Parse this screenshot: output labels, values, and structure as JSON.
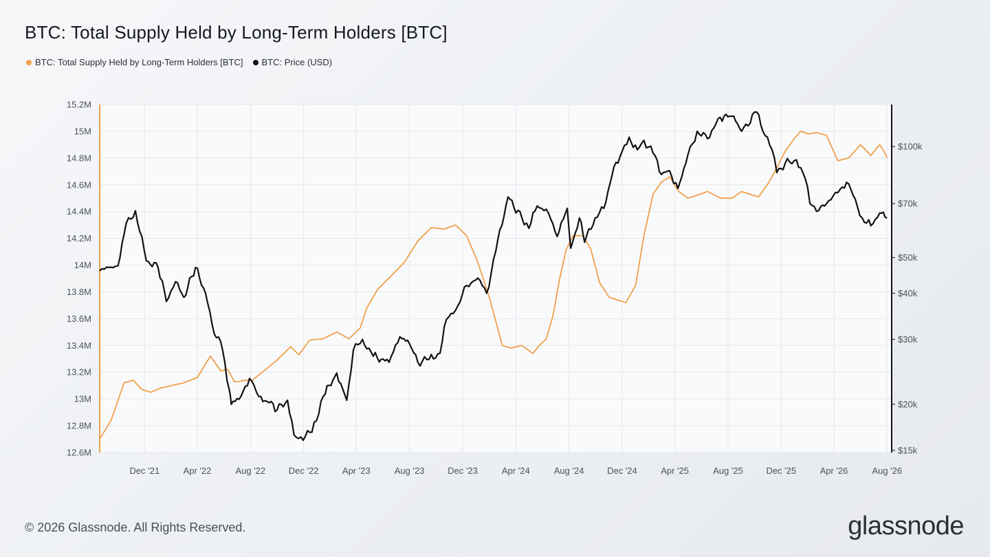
{
  "title": "BTC: Total Supply Held by Long-Term Holders [BTC]",
  "legend": [
    {
      "label": "BTC: Total Supply Held by Long-Term Holders [BTC]",
      "color": "#f0a04b"
    },
    {
      "label": "BTC: Price (USD)",
      "color": "#111111"
    }
  ],
  "footer": {
    "copyright": "© 2026 Glassnode. All Rights Reserved.",
    "logo": "glassnode"
  },
  "chart_data": {
    "type": "line",
    "title": "BTC: Total Supply Held by Long-Term Holders [BTC]",
    "grid": true,
    "legend_position": "top-left",
    "x_range": [
      "2021-08-20",
      "2026-08-10"
    ],
    "x_ticks": [
      "Dec '21",
      "Apr '22",
      "Aug '22",
      "Dec '22",
      "Apr '23",
      "Aug '23",
      "Dec '23",
      "Apr '24",
      "Aug '24",
      "Dec '24",
      "Apr '25",
      "Aug '25",
      "Dec '25",
      "Apr '26",
      "Aug '26"
    ],
    "y_left": {
      "ticks": [
        "15.2M",
        "15M",
        "14.8M",
        "14.6M",
        "14.4M",
        "14.2M",
        "14M",
        "13.8M",
        "13.6M",
        "13.4M",
        "13.2M",
        "13M",
        "12.8M",
        "12.6M"
      ],
      "range": [
        12.6,
        15.2
      ],
      "unit": "M BTC"
    },
    "y_right": {
      "scale": "log",
      "ticks": [
        "$100k",
        "$70k",
        "$50k",
        "$40k",
        "$30k",
        "$20k",
        "$15k"
      ],
      "tick_values": [
        100000,
        70000,
        50000,
        40000,
        30000,
        20000,
        15000
      ],
      "range": [
        14800,
        130000
      ]
    },
    "series": [
      {
        "name": "BTC: Total Supply Held by Long-Term Holders [BTC]",
        "axis": "left",
        "color": "#f0a04b",
        "x": [
          "2021-08-20",
          "2021-09-15",
          "2021-10-15",
          "2021-11-05",
          "2021-11-25",
          "2021-12-15",
          "2022-01-05",
          "2022-02-01",
          "2022-03-01",
          "2022-04-01",
          "2022-05-01",
          "2022-05-25",
          "2022-06-10",
          "2022-06-25",
          "2022-07-05",
          "2022-07-20",
          "2022-08-05",
          "2022-09-01",
          "2022-10-01",
          "2022-11-01",
          "2022-11-20",
          "2022-12-15",
          "2023-01-15",
          "2023-02-15",
          "2023-03-15",
          "2023-04-10",
          "2023-04-25",
          "2023-05-20",
          "2023-06-20",
          "2023-07-20",
          "2023-08-20",
          "2023-09-20",
          "2023-10-20",
          "2023-11-15",
          "2023-12-10",
          "2024-01-05",
          "2024-02-01",
          "2024-03-01",
          "2024-03-20",
          "2024-04-15",
          "2024-05-10",
          "2024-05-25",
          "2024-06-10",
          "2024-06-25",
          "2024-07-10",
          "2024-07-25",
          "2024-08-10",
          "2024-09-01",
          "2024-09-20",
          "2024-10-10",
          "2024-11-01",
          "2024-11-20",
          "2024-12-10",
          "2025-01-01",
          "2025-01-20",
          "2025-02-10",
          "2025-03-01",
          "2025-03-20",
          "2025-04-10",
          "2025-05-01",
          "2025-05-20",
          "2025-06-15",
          "2025-07-15",
          "2025-08-10",
          "2025-09-01",
          "2025-09-20",
          "2025-10-10",
          "2025-11-01",
          "2025-11-20",
          "2025-12-10",
          "2026-01-01",
          "2026-01-15",
          "2026-02-01",
          "2026-02-20",
          "2026-03-15",
          "2026-04-10",
          "2026-05-05",
          "2026-06-01",
          "2026-06-25",
          "2026-07-15",
          "2026-07-25",
          "2026-08-01"
        ],
        "y": [
          12.7,
          12.84,
          13.12,
          13.14,
          13.07,
          13.05,
          13.08,
          13.1,
          13.12,
          13.16,
          13.32,
          13.21,
          13.22,
          13.13,
          13.13,
          13.14,
          13.14,
          13.21,
          13.29,
          13.39,
          13.33,
          13.44,
          13.45,
          13.5,
          13.45,
          13.53,
          13.68,
          13.82,
          13.92,
          14.02,
          14.18,
          14.28,
          14.27,
          14.3,
          14.22,
          14.02,
          13.75,
          13.4,
          13.38,
          13.4,
          13.34,
          13.4,
          13.45,
          13.62,
          13.89,
          14.11,
          14.22,
          14.22,
          14.12,
          13.87,
          13.76,
          13.74,
          13.72,
          13.85,
          14.22,
          14.53,
          14.62,
          14.66,
          14.55,
          14.5,
          14.52,
          14.55,
          14.5,
          14.5,
          14.55,
          14.53,
          14.51,
          14.61,
          14.72,
          14.85,
          14.95,
          15.0,
          14.98,
          14.99,
          14.97,
          14.78,
          14.8,
          14.9,
          14.82,
          14.9,
          14.85,
          14.8
        ]
      },
      {
        "name": "BTC: Price (USD)",
        "axis": "right",
        "color": "#111111",
        "x": [
          "2021-08-20",
          "2021-09-10",
          "2021-10-01",
          "2021-10-20",
          "2021-11-10",
          "2021-12-05",
          "2022-01-01",
          "2022-01-20",
          "2022-02-10",
          "2022-03-01",
          "2022-03-28",
          "2022-04-20",
          "2022-05-10",
          "2022-05-25",
          "2022-06-13",
          "2022-06-18",
          "2022-07-10",
          "2022-07-30",
          "2022-08-20",
          "2022-09-13",
          "2022-10-01",
          "2022-10-25",
          "2022-11-09",
          "2022-11-25",
          "2022-12-20",
          "2023-01-15",
          "2023-02-15",
          "2023-03-10",
          "2023-03-25",
          "2023-04-15",
          "2023-05-10",
          "2023-06-15",
          "2023-07-10",
          "2023-08-01",
          "2023-08-20",
          "2023-09-15",
          "2023-10-10",
          "2023-10-25",
          "2023-11-20",
          "2023-12-10",
          "2024-01-05",
          "2024-01-25",
          "2024-02-15",
          "2024-03-14",
          "2024-04-15",
          "2024-05-01",
          "2024-05-20",
          "2024-06-15",
          "2024-07-05",
          "2024-07-28",
          "2024-08-05",
          "2024-08-25",
          "2024-09-06",
          "2024-09-30",
          "2024-10-20",
          "2024-11-12",
          "2024-12-01",
          "2024-12-17",
          "2025-01-05",
          "2025-01-20",
          "2025-02-10",
          "2025-03-01",
          "2025-03-20",
          "2025-04-08",
          "2025-05-01",
          "2025-05-22",
          "2025-06-15",
          "2025-07-14",
          "2025-08-14",
          "2025-09-01",
          "2025-10-06",
          "2025-10-20",
          "2025-11-10",
          "2025-11-21",
          "2025-12-10",
          "2026-01-05",
          "2026-01-25",
          "2026-02-05",
          "2026-02-25",
          "2026-03-15",
          "2026-04-10",
          "2026-04-30",
          "2026-05-20",
          "2026-06-05",
          "2026-06-25",
          "2026-07-15",
          "2026-08-01"
        ],
        "y": [
          46000,
          47000,
          47500,
          62000,
          67000,
          49000,
          47000,
          38000,
          43000,
          39000,
          47000,
          40000,
          31000,
          29500,
          22000,
          20000,
          21000,
          23500,
          21000,
          20200,
          19300,
          20500,
          16500,
          16300,
          16800,
          21000,
          24300,
          20500,
          28000,
          30000,
          27000,
          26000,
          30500,
          29200,
          26000,
          26500,
          27500,
          34000,
          37000,
          42000,
          44000,
          40000,
          52000,
          73000,
          64000,
          60000,
          69000,
          66000,
          57000,
          68000,
          53000,
          64000,
          55000,
          64000,
          68000,
          88000,
          97000,
          106000,
          98000,
          104000,
          96000,
          84000,
          86000,
          77000,
          95000,
          110000,
          105000,
          120000,
          121000,
          110000,
          124000,
          110000,
          98000,
          85000,
          90000,
          92000,
          82000,
          70000,
          67000,
          70000,
          75000,
          80000,
          72000,
          64000,
          61000,
          66000,
          64000
        ]
      }
    ]
  }
}
